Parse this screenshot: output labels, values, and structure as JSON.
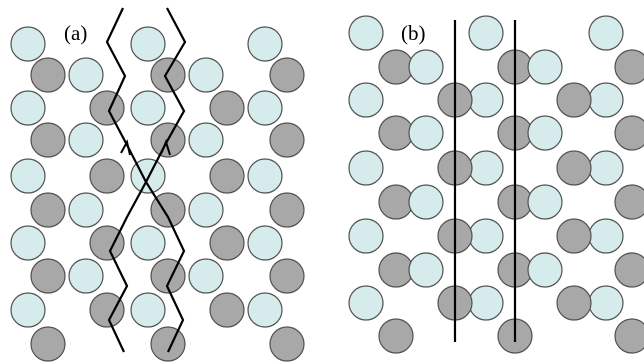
{
  "panels": [
    {
      "id": "a",
      "label": "(a)"
    },
    {
      "id": "b",
      "label": "(b)"
    }
  ],
  "colors": {
    "light_atom_fill": "#d6ecec",
    "dark_atom_fill": "#a8a8a8",
    "atom_stroke": "#505050",
    "path_line": "#000000"
  }
}
